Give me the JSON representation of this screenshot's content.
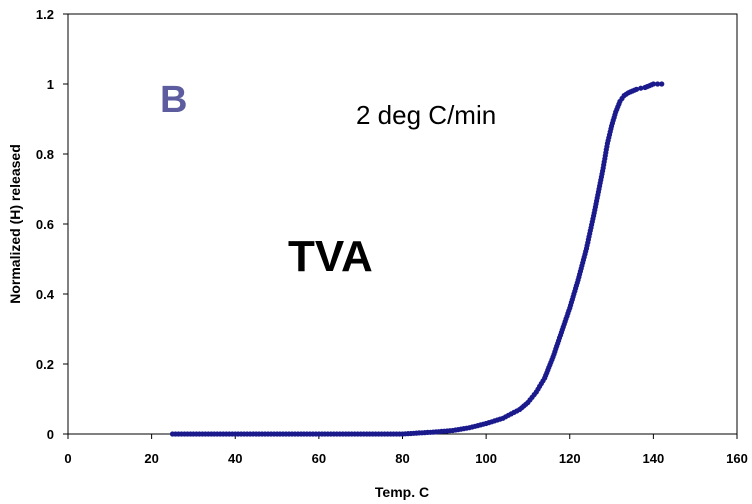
{
  "chart_data": {
    "type": "scatter",
    "xlabel": "Temp. C",
    "ylabel": "Normalized (H) released",
    "xlim": [
      0,
      160
    ],
    "ylim": [
      0,
      1.2
    ],
    "x_ticks": [
      "0",
      "20",
      "40",
      "60",
      "80",
      "100",
      "120",
      "140",
      "160"
    ],
    "y_ticks": [
      "0",
      "0.2",
      "0.4",
      "0.6",
      "0.8",
      "1",
      "1.2"
    ],
    "grid": false,
    "legend": "none",
    "colors": {
      "series": "#1a1a8c",
      "panel_label": "#5c5c9e"
    },
    "annotations": {
      "panel": "B",
      "rate": "2 deg C/min",
      "method": "TVA"
    },
    "series": [
      {
        "x": [
          25,
          30,
          40,
          50,
          60,
          70,
          80,
          84,
          88,
          92,
          96,
          100,
          104,
          108,
          110,
          112,
          114,
          116,
          118,
          120,
          122,
          124,
          126,
          128,
          129,
          130,
          131,
          132,
          133,
          134,
          135,
          136,
          137,
          138,
          139,
          140,
          141,
          142
        ],
        "y": [
          0.0,
          0.0,
          0.0,
          0.0,
          0.0,
          0.0,
          0.0,
          0.003,
          0.006,
          0.01,
          0.018,
          0.03,
          0.045,
          0.07,
          0.09,
          0.12,
          0.16,
          0.22,
          0.29,
          0.36,
          0.44,
          0.53,
          0.64,
          0.76,
          0.83,
          0.88,
          0.92,
          0.95,
          0.967,
          0.975,
          0.98,
          0.985,
          0.988,
          0.99,
          0.995,
          1.0,
          1.0,
          1.0
        ]
      }
    ]
  }
}
